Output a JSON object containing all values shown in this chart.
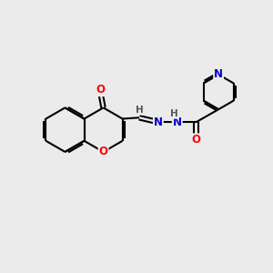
{
  "bg_color": "#ebebeb",
  "bond_color": "#000000",
  "bond_width": 1.5,
  "atom_colors": {
    "O": "#ff0000",
    "N": "#0000cc",
    "C": "#000000",
    "H": "#555555"
  },
  "font_size": 8.5,
  "fig_size": [
    3.0,
    3.0
  ],
  "dpi": 100
}
